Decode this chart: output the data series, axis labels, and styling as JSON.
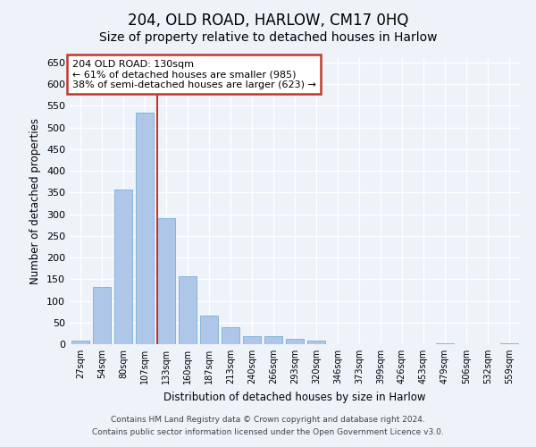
{
  "title": "204, OLD ROAD, HARLOW, CM17 0HQ",
  "subtitle": "Size of property relative to detached houses in Harlow",
  "xlabel": "Distribution of detached houses by size in Harlow",
  "ylabel": "Number of detached properties",
  "categories": [
    "27sqm",
    "54sqm",
    "80sqm",
    "107sqm",
    "133sqm",
    "160sqm",
    "187sqm",
    "213sqm",
    "240sqm",
    "266sqm",
    "293sqm",
    "320sqm",
    "346sqm",
    "373sqm",
    "399sqm",
    "426sqm",
    "453sqm",
    "479sqm",
    "506sqm",
    "532sqm",
    "559sqm"
  ],
  "values": [
    8,
    133,
    357,
    535,
    290,
    157,
    65,
    40,
    18,
    18,
    13,
    8,
    0,
    0,
    0,
    0,
    0,
    3,
    0,
    0,
    2
  ],
  "bar_color": "#aec6e8",
  "bar_edge_color": "#7aafd4",
  "marker_line_color": "#c0392b",
  "annotation_line1": "204 OLD ROAD: 130sqm",
  "annotation_line2": "← 61% of detached houses are smaller (985)",
  "annotation_line3": "38% of semi-detached houses are larger (623) →",
  "annotation_box_color": "#c0392b",
  "ylim": [
    0,
    660
  ],
  "yticks": [
    0,
    50,
    100,
    150,
    200,
    250,
    300,
    350,
    400,
    450,
    500,
    550,
    600,
    650
  ],
  "background_color": "#eef2f9",
  "grid_color": "#ffffff",
  "footer_line1": "Contains HM Land Registry data © Crown copyright and database right 2024.",
  "footer_line2": "Contains public sector information licensed under the Open Government Licence v3.0.",
  "title_fontsize": 12,
  "subtitle_fontsize": 10
}
